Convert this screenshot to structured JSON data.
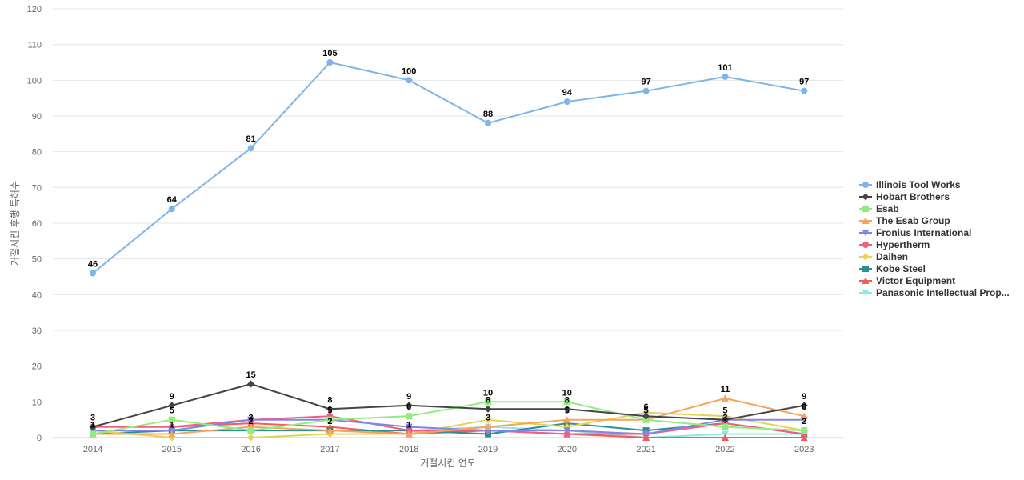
{
  "chart_data": {
    "type": "line",
    "title": "",
    "xlabel": "거절시킨 연도",
    "ylabel": "거절시킨 후행 특허수",
    "ylim": [
      0,
      120
    ],
    "yticks": [
      0,
      10,
      20,
      30,
      40,
      50,
      60,
      70,
      80,
      90,
      100,
      110,
      120
    ],
    "grid": true,
    "legend": "right",
    "x": [
      "2014",
      "2015",
      "2016",
      "2017",
      "2018",
      "2019",
      "2020",
      "2021",
      "2022",
      "2023"
    ],
    "series": [
      {
        "name": "Illinois Tool Works",
        "color": "#7cb5ec",
        "marker": "circle",
        "labels": true,
        "values": [
          46,
          64,
          81,
          105,
          100,
          88,
          94,
          97,
          101,
          97
        ]
      },
      {
        "name": "Hobart Brothers",
        "color": "#434348",
        "marker": "diamond",
        "labels": true,
        "values": [
          3,
          9,
          15,
          8,
          9,
          8,
          8,
          6,
          5,
          9
        ]
      },
      {
        "name": "Esab",
        "color": "#90ed7d",
        "marker": "square",
        "labels": true,
        "values": [
          1,
          5,
          2,
          5,
          6,
          10,
          10,
          5,
          3,
          2
        ]
      },
      {
        "name": "The Esab Group",
        "color": "#f7a35c",
        "marker": "triangle",
        "labels": true,
        "values": [
          1,
          1,
          3,
          2,
          1,
          3,
          5,
          5,
          11,
          6
        ]
      },
      {
        "name": "Fronius International",
        "color": "#8085e9",
        "marker": "triangle-down",
        "labels": false,
        "values": [
          2,
          2,
          5,
          5,
          3,
          2,
          2,
          1,
          5,
          5
        ]
      },
      {
        "name": "Hypertherm",
        "color": "#f15c80",
        "marker": "circle",
        "labels": false,
        "values": [
          3,
          3,
          5,
          6,
          2,
          2,
          1,
          1,
          4,
          1
        ]
      },
      {
        "name": "Daihen",
        "color": "#e4d354",
        "marker": "diamond",
        "labels": false,
        "values": [
          2,
          0,
          0,
          1,
          1,
          5,
          3,
          7,
          6,
          2
        ]
      },
      {
        "name": "Kobe Steel",
        "color": "#2b908f",
        "marker": "square",
        "labels": false,
        "values": [
          1,
          2,
          2,
          2,
          2,
          1,
          4,
          2,
          4,
          1
        ]
      },
      {
        "name": "Victor Equipment",
        "color": "#f45b5b",
        "marker": "triangle",
        "labels": false,
        "values": [
          3,
          3,
          4,
          3,
          1,
          2,
          1,
          0,
          0,
          0
        ]
      },
      {
        "name": "Panasonic Intellectual Prop...",
        "color": "#91e8e1",
        "marker": "triangle-down",
        "labels": false,
        "values": [
          2,
          2,
          2,
          2,
          2,
          3,
          2,
          0,
          1,
          1
        ]
      }
    ]
  }
}
